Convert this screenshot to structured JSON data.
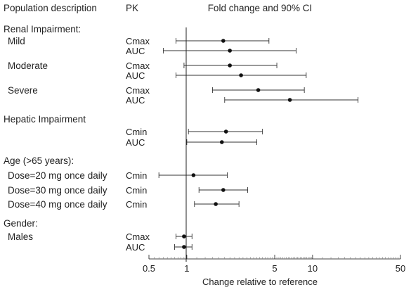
{
  "header": {
    "population_col": "Population description",
    "pk_col": "PK",
    "ci_col": "Fold change and 90% CI"
  },
  "chart_data": {
    "type": "forest",
    "xlabel": "Change relative to reference",
    "xscale": "log",
    "xlim": [
      0.5,
      50
    ],
    "reference_line": 1,
    "ticks": [
      {
        "value": 0.5,
        "label": "0.5"
      },
      {
        "value": 1,
        "label": "1"
      },
      {
        "value": 5,
        "label": "5"
      },
      {
        "value": 10,
        "label": "10"
      },
      {
        "value": 50,
        "label": "50"
      }
    ],
    "groups": [
      {
        "label": "Renal Impairment:",
        "rows": [
          {
            "sublabel": "Mild",
            "pk": "Cmax",
            "point": 1.95,
            "lo": 0.82,
            "hi": 4.5
          },
          {
            "sublabel": "",
            "pk": "AUC",
            "point": 2.2,
            "lo": 0.65,
            "hi": 7.4
          }
        ]
      },
      {
        "label": "",
        "rows": [
          {
            "sublabel": "Moderate",
            "pk": "Cmax",
            "point": 2.2,
            "lo": 0.95,
            "hi": 5.2
          },
          {
            "sublabel": "",
            "pk": "AUC",
            "point": 2.7,
            "lo": 0.82,
            "hi": 8.9
          }
        ]
      },
      {
        "label": "",
        "rows": [
          {
            "sublabel": "Severe",
            "pk": "Cmax",
            "point": 3.7,
            "lo": 1.6,
            "hi": 8.6
          },
          {
            "sublabel": "",
            "pk": "AUC",
            "point": 6.6,
            "lo": 2.0,
            "hi": 23.0
          }
        ]
      },
      {
        "label": "Hepatic Impairment",
        "rows": [
          {
            "sublabel": "",
            "pk": "Cmin",
            "point": 2.05,
            "lo": 1.03,
            "hi": 4.0
          },
          {
            "sublabel": "",
            "pk": "AUC",
            "point": 1.9,
            "lo": 1.0,
            "hi": 3.6
          }
        ]
      },
      {
        "label": "Age (>65 years):",
        "rows": [
          {
            "sublabel": "Dose=20 mg once daily",
            "pk": "Cmin",
            "point": 1.13,
            "lo": 0.6,
            "hi": 2.1
          },
          {
            "sublabel": "Dose=30 mg once daily",
            "pk": "Cmin",
            "point": 1.95,
            "lo": 1.25,
            "hi": 3.05
          },
          {
            "sublabel": "Dose=40 mg once daily",
            "pk": "Cmin",
            "point": 1.7,
            "lo": 1.15,
            "hi": 2.6
          }
        ]
      },
      {
        "label": "Gender:",
        "rows": [
          {
            "sublabel": "Males",
            "pk": "Cmax",
            "point": 0.95,
            "lo": 0.82,
            "hi": 1.1
          },
          {
            "sublabel": "",
            "pk": "AUC",
            "point": 0.95,
            "lo": 0.8,
            "hi": 1.1
          }
        ]
      }
    ]
  }
}
